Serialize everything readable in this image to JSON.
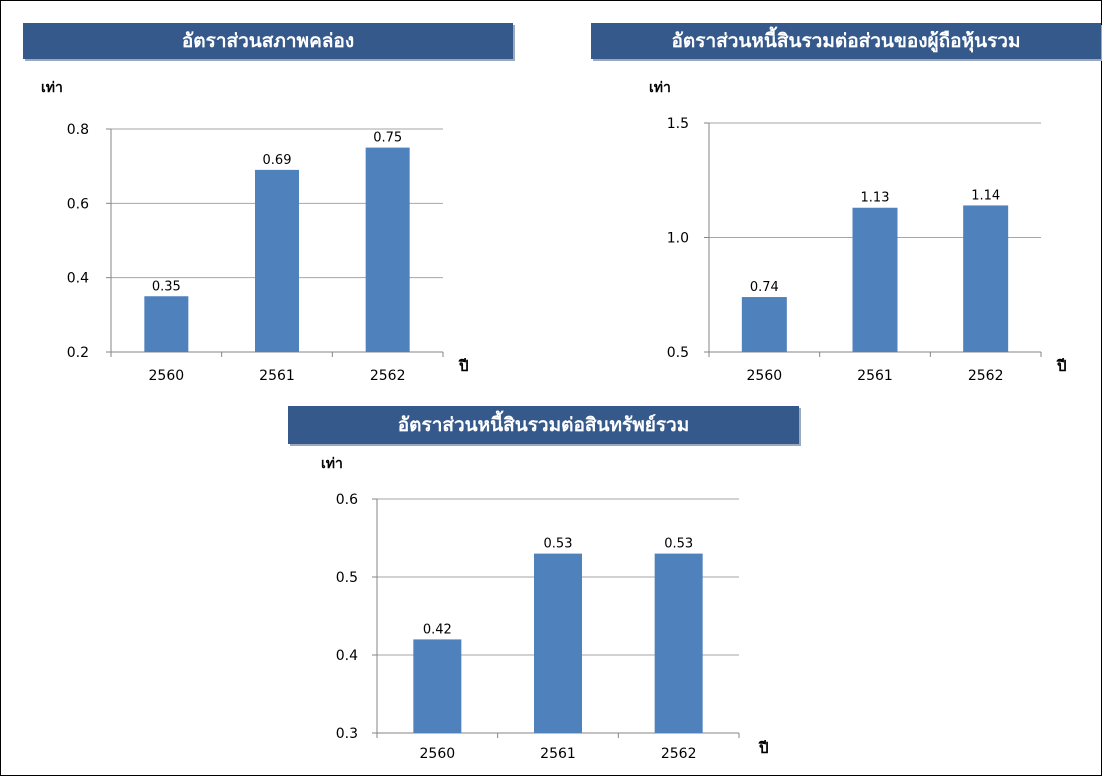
{
  "chart_data": [
    {
      "type": "bar",
      "title": "อัตราส่วนสภาพคล่อง",
      "ylabel": "เท่า",
      "xlabel": "ปี",
      "categories": [
        "2560",
        "2561",
        "2562"
      ],
      "values": [
        0.35,
        0.69,
        0.75
      ],
      "data_labels": [
        "0.35",
        "0.69",
        "0.75"
      ],
      "ylim": [
        0.2,
        0.8
      ],
      "yticks": [
        "0.2",
        "0.4",
        "0.6",
        "0.8"
      ],
      "ytick_values": [
        0.2,
        0.4,
        0.6,
        0.8
      ],
      "grid": true,
      "bar_color": "#4f81bd"
    },
    {
      "type": "bar",
      "title": "อัตราส่วนหนี้สินรวมต่อส่วนของผู้ถือหุ้นรวม",
      "ylabel": "เท่า",
      "xlabel": "ปี",
      "categories": [
        "2560",
        "2561",
        "2562"
      ],
      "values": [
        0.74,
        1.13,
        1.14
      ],
      "data_labels": [
        "0.74",
        "1.13",
        "1.14"
      ],
      "ylim": [
        0.5,
        1.5
      ],
      "yticks": [
        "0.5",
        "1.0",
        "1.5"
      ],
      "ytick_values": [
        0.5,
        1.0,
        1.5
      ],
      "grid": true,
      "bar_color": "#4f81bd"
    },
    {
      "type": "bar",
      "title": "อัตราส่วนหนี้สินรวมต่อสินทรัพย์รวม",
      "ylabel": "เท่า",
      "xlabel": "ปี",
      "categories": [
        "2560",
        "2561",
        "2562"
      ],
      "values": [
        0.42,
        0.53,
        0.53
      ],
      "data_labels": [
        "0.42",
        "0.53",
        "0.53"
      ],
      "ylim": [
        0.3,
        0.6
      ],
      "yticks": [
        "0.3",
        "0.4",
        "0.5",
        "0.6"
      ],
      "ytick_values": [
        0.3,
        0.4,
        0.5,
        0.6
      ],
      "grid": true,
      "bar_color": "#4f81bd"
    }
  ]
}
